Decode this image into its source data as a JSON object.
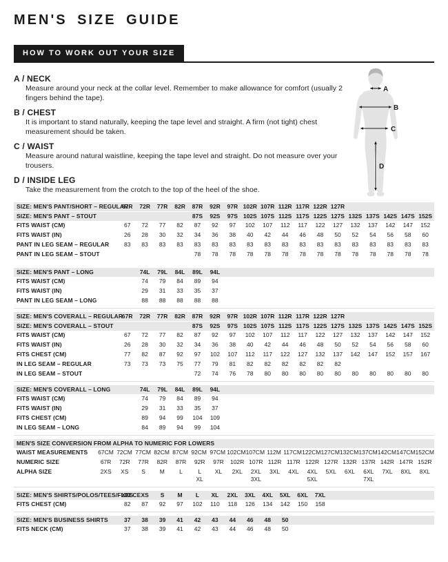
{
  "header": {
    "title": "MEN'S SIZE GUIDE",
    "banner": "HOW TO WORK OUT YOUR SIZE"
  },
  "colors": {
    "banner_bg": "#1A1A1A",
    "banner_text": "#FFFFFF",
    "header_row_bg": "#E7E7E7",
    "body_text": "#1D1D1B",
    "figure_body": "#E3E3E3",
    "figure_hair": "#B5B5B5",
    "separator_line": "#DCDCDC"
  },
  "instructions": [
    {
      "label": "A / NECK",
      "text": "Measure around your neck at the collar level. Remember to make allowance for comfort (usually 2 fingers behind the tape)."
    },
    {
      "label": "B / CHEST",
      "text": "It is important to stand naturally, keeping the tape level and straight. A firm (not tight) chest measurement should be taken."
    },
    {
      "label": "C / WAIST",
      "text": "Measure around natural waistline, keeping the tape level and straight. Do not measure over your trousers."
    },
    {
      "label": "D / INSIDE LEG",
      "text": "Take the measurement from the crotch to the top of the heel of the shoe."
    }
  ],
  "figure": {
    "labels": [
      "A",
      "B",
      "C",
      "D"
    ]
  },
  "tables": [
    {
      "name": "pant-short",
      "separator_before": false,
      "rows": [
        {
          "type": "header",
          "label": "SIZE: MEN'S PANT/SHORT – REGULAR",
          "values": [
            "67R",
            "72R",
            "77R",
            "82R",
            "87R",
            "92R",
            "97R",
            "102R",
            "107R",
            "112R",
            "117R",
            "122R",
            "127R",
            "",
            "",
            "",
            "",
            ""
          ]
        },
        {
          "type": "header",
          "label": "SIZE: MEN'S PANT – STOUT",
          "values": [
            "",
            "",
            "",
            "",
            "87S",
            "92S",
            "97S",
            "102S",
            "107S",
            "112S",
            "117S",
            "122S",
            "127S",
            "132S",
            "137S",
            "142S",
            "147S",
            "152S"
          ]
        },
        {
          "type": "data",
          "label": "FITS WAIST (CM)",
          "values": [
            "67",
            "72",
            "77",
            "82",
            "87",
            "92",
            "97",
            "102",
            "107",
            "112",
            "117",
            "122",
            "127",
            "132",
            "137",
            "142",
            "147",
            "152"
          ]
        },
        {
          "type": "data",
          "label": "FITS WAIST (IN)",
          "values": [
            "26",
            "28",
            "30",
            "32",
            "34",
            "36",
            "38",
            "40",
            "42",
            "44",
            "46",
            "48",
            "50",
            "52",
            "54",
            "56",
            "58",
            "60"
          ]
        },
        {
          "type": "data",
          "label": "PANT IN LEG SEAM – REGULAR",
          "values": [
            "83",
            "83",
            "83",
            "83",
            "83",
            "83",
            "83",
            "83",
            "83",
            "83",
            "83",
            "83",
            "83",
            "83",
            "83",
            "83",
            "83",
            "83"
          ]
        },
        {
          "type": "data",
          "label": "PANT IN LEG SEAM – STOUT",
          "values": [
            "",
            "",
            "",
            "",
            "78",
            "78",
            "78",
            "78",
            "78",
            "78",
            "78",
            "78",
            "78",
            "78",
            "78",
            "78",
            "78",
            "78"
          ]
        }
      ]
    },
    {
      "name": "pant-long",
      "separator_before": false,
      "rows": [
        {
          "type": "header",
          "label": "SIZE: MEN'S PANT – LONG",
          "values": [
            "",
            "74L",
            "79L",
            "84L",
            "89L",
            "94L",
            "",
            "",
            "",
            "",
            "",
            "",
            "",
            "",
            "",
            "",
            "",
            ""
          ]
        },
        {
          "type": "data",
          "label": "FITS WAIST (CM)",
          "values": [
            "",
            "74",
            "79",
            "84",
            "89",
            "94",
            "",
            "",
            "",
            "",
            "",
            "",
            "",
            "",
            "",
            "",
            "",
            ""
          ]
        },
        {
          "type": "data",
          "label": "FITS WAIST (IN)",
          "values": [
            "",
            "29",
            "31",
            "33",
            "35",
            "37",
            "",
            "",
            "",
            "",
            "",
            "",
            "",
            "",
            "",
            "",
            "",
            ""
          ]
        },
        {
          "type": "data",
          "label": "PANT IN LEG SEAM – LONG",
          "values": [
            "",
            "88",
            "88",
            "88",
            "88",
            "88",
            "",
            "",
            "",
            "",
            "",
            "",
            "",
            "",
            "",
            "",
            "",
            ""
          ]
        }
      ]
    },
    {
      "name": "coverall",
      "separator_before": true,
      "rows": [
        {
          "type": "header",
          "label": "SIZE: MEN'S COVERALL – REGULAR",
          "values": [
            "67R",
            "72R",
            "77R",
            "82R",
            "87R",
            "92R",
            "97R",
            "102R",
            "107R",
            "112R",
            "117R",
            "122R",
            "127R",
            "",
            "",
            "",
            "",
            ""
          ]
        },
        {
          "type": "header",
          "label": "SIZE: MEN'S COVERALL – STOUT",
          "values": [
            "",
            "",
            "",
            "",
            "87S",
            "92S",
            "97S",
            "102S",
            "107S",
            "112S",
            "117S",
            "122S",
            "127S",
            "132S",
            "137S",
            "142S",
            "147S",
            "152S"
          ]
        },
        {
          "type": "data",
          "label": "FITS WAIST (CM)",
          "values": [
            "67",
            "72",
            "77",
            "82",
            "87",
            "92",
            "97",
            "102",
            "107",
            "112",
            "117",
            "122",
            "127",
            "132",
            "137",
            "142",
            "147",
            "152"
          ]
        },
        {
          "type": "data",
          "label": "FITS WAIST (IN)",
          "values": [
            "26",
            "28",
            "30",
            "32",
            "34",
            "36",
            "38",
            "40",
            "42",
            "44",
            "46",
            "48",
            "50",
            "52",
            "54",
            "56",
            "58",
            "60"
          ]
        },
        {
          "type": "data",
          "label": "FITS CHEST (CM)",
          "values": [
            "77",
            "82",
            "87",
            "92",
            "97",
            "102",
            "107",
            "112",
            "117",
            "122",
            "127",
            "132",
            "137",
            "142",
            "147",
            "152",
            "157",
            "167"
          ]
        },
        {
          "type": "data",
          "label": "IN LEG SEAM – REGULAR",
          "values": [
            "73",
            "73",
            "73",
            "75",
            "77",
            "79",
            "81",
            "82",
            "82",
            "82",
            "82",
            "82",
            "82",
            "",
            "",
            "",
            "",
            ""
          ]
        },
        {
          "type": "data",
          "label": "IN LEG SEAM – STOUT",
          "values": [
            "",
            "",
            "",
            "",
            "72",
            "74",
            "76",
            "78",
            "80",
            "80",
            "80",
            "80",
            "80",
            "80",
            "80",
            "80",
            "80",
            "80"
          ]
        }
      ]
    },
    {
      "name": "coverall-long",
      "separator_before": true,
      "rows": [
        {
          "type": "header",
          "label": "SIZE: MEN'S COVERALL – LONG",
          "values": [
            "",
            "74L",
            "79L",
            "84L",
            "89L",
            "94L",
            "",
            "",
            "",
            "",
            "",
            "",
            "",
            "",
            "",
            "",
            "",
            ""
          ]
        },
        {
          "type": "data",
          "label": "FITS WAIST (CM)",
          "values": [
            "",
            "74",
            "79",
            "84",
            "89",
            "94",
            "",
            "",
            "",
            "",
            "",
            "",
            "",
            "",
            "",
            "",
            "",
            ""
          ]
        },
        {
          "type": "data",
          "label": "FITS WAIST (IN)",
          "values": [
            "",
            "29",
            "31",
            "33",
            "35",
            "37",
            "",
            "",
            "",
            "",
            "",
            "",
            "",
            "",
            "",
            "",
            "",
            ""
          ]
        },
        {
          "type": "data",
          "label": "FITS CHEST (CM)",
          "values": [
            "",
            "89",
            "94",
            "99",
            "104",
            "109",
            "",
            "",
            "",
            "",
            "",
            "",
            "",
            "",
            "",
            "",
            "",
            ""
          ]
        },
        {
          "type": "data",
          "label": "IN LEG SEAM – LONG",
          "values": [
            "",
            "84",
            "89",
            "94",
            "99",
            "104",
            "",
            "",
            "",
            "",
            "",
            "",
            "",
            "",
            "",
            "",
            "",
            ""
          ]
        }
      ]
    },
    {
      "name": "alpha-numeric-conversion",
      "separator_before": true,
      "compact": true,
      "rows": [
        {
          "type": "title",
          "label": "MEN'S SIZE CONVERSION FROM ALPHA TO NUMERIC FOR LOWERS",
          "values": []
        },
        {
          "type": "data",
          "label": "WAIST MEASUREMENTS",
          "values": [
            "67CM",
            "72CM",
            "77CM",
            "82CM",
            "87CM",
            "92CM",
            "97CM",
            "102CM",
            "107CM",
            "112M",
            "117CM",
            "122CM",
            "127CM",
            "132CM",
            "137CM",
            "142CM",
            "147CM",
            "152CM"
          ]
        },
        {
          "type": "data",
          "label": "NUMERIC SIZE",
          "values": [
            "67R",
            "72R",
            "77R",
            "82R",
            "87R",
            "92R",
            "97R",
            "102R",
            "107R",
            "112R",
            "117R",
            "122R",
            "127R",
            "132R",
            "137R",
            "142R",
            "147R",
            "152R"
          ]
        },
        {
          "type": "data",
          "label": "ALPHA SIZE",
          "values": [
            "2XS",
            "XS",
            "S",
            "M",
            "L",
            "L\nXL",
            "XL",
            "2XL",
            "2XL\n3XL",
            "3XL",
            "4XL",
            "4XL\n5XL",
            "5XL",
            "6XL",
            "6XL\n7XL",
            "7XL",
            "8XL",
            "8XL"
          ]
        }
      ]
    },
    {
      "name": "shirts-polos-tees-fleece",
      "separator_before": true,
      "rows": [
        {
          "type": "header",
          "label": "SIZE: MEN'S SHIRTS/POLOS/TEES/FLEECE",
          "values": [
            "XXS",
            "XS",
            "S",
            "M",
            "L",
            "XL",
            "2XL",
            "3XL",
            "4XL",
            "5XL",
            "6XL",
            "7XL",
            "",
            "",
            "",
            "",
            "",
            ""
          ]
        },
        {
          "type": "data",
          "label": "FITS CHEST (CM)",
          "values": [
            "82",
            "87",
            "92",
            "97",
            "102",
            "110",
            "118",
            "126",
            "134",
            "142",
            "150",
            "158",
            "",
            "",
            "",
            "",
            "",
            ""
          ]
        }
      ]
    },
    {
      "name": "business-shirts",
      "separator_before": true,
      "rows": [
        {
          "type": "header",
          "label": "SIZE: MEN'S BUSINESS SHIRTS",
          "values": [
            "37",
            "38",
            "39",
            "41",
            "42",
            "43",
            "44",
            "46",
            "48",
            "50",
            "",
            "",
            "",
            "",
            "",
            "",
            "",
            ""
          ]
        },
        {
          "type": "data",
          "label": "FITS NECK (CM)",
          "values": [
            "37",
            "38",
            "39",
            "41",
            "42",
            "43",
            "44",
            "46",
            "48",
            "50",
            "",
            "",
            "",
            "",
            "",
            "",
            "",
            ""
          ]
        }
      ]
    }
  ]
}
